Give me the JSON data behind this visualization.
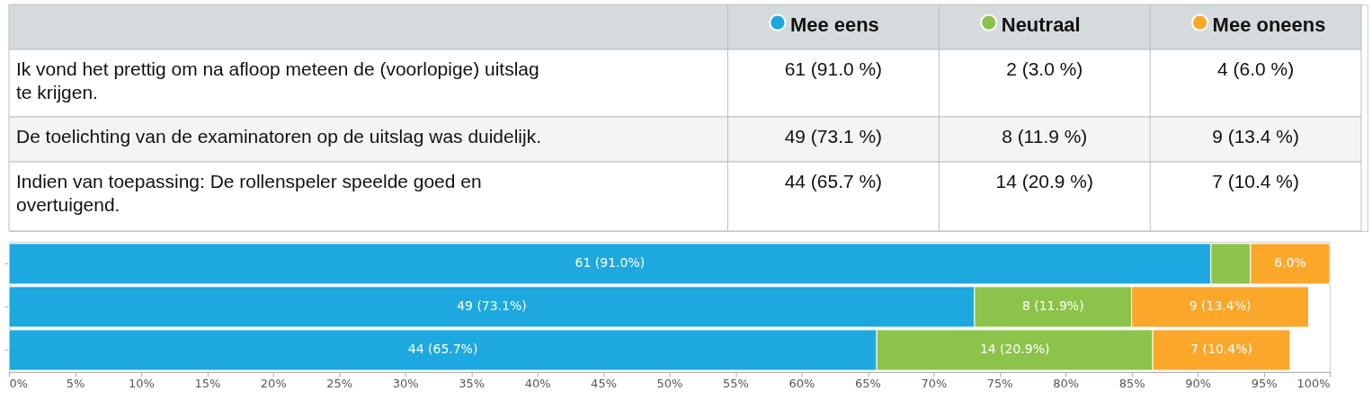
{
  "chart_data": {
    "type": "bar",
    "orientation": "horizontal",
    "stacked": true,
    "categories": [
      null,
      null,
      null
    ],
    "series": [
      {
        "name": "Mee eens",
        "color": "#1ea8e0",
        "values": [
          91.0,
          73.1,
          65.7
        ],
        "value_labels": [
          "61 (91.0%)",
          "49 (73.1%)",
          "44 (65.7%)"
        ]
      },
      {
        "name": "Neutraal",
        "color": "#8cc34b",
        "values": [
          3.0,
          11.9,
          20.9
        ],
        "value_labels": [
          null,
          "8 (11.9%)",
          "14 (20.9%)"
        ]
      },
      {
        "name": "Mee oneens",
        "color": "#fba72a",
        "values": [
          6.0,
          13.4,
          10.4
        ],
        "value_labels": [
          "6.0%",
          "9 (13.4%)",
          "7 (10.4%)"
        ]
      }
    ],
    "annotations": [
      "Ik vond het prettig om na afloop meteen de (voorlopige) uitslag te krijgen.",
      "61 (91.0 %)",
      "2 (3.0 %)",
      "4 (6.0 %)",
      "De toelichting van de examinatoren op de uitslag was duidelijk.",
      "49 (73.1 %)",
      "8 (11.9 %)",
      "9 (13.4 %)",
      "Indien van toepassing: De rollenspeler speelde goed en overtuigend.",
      "44 (65.7 %)",
      "14 (20.9 %)",
      "7 (10.4 %)"
    ],
    "xlim": [
      0,
      100
    ],
    "xticks": [
      {
        "value": 0,
        "label": "0%"
      },
      {
        "value": 5,
        "label": "5%"
      },
      {
        "value": 10,
        "label": "10%"
      },
      {
        "value": 15,
        "label": "15%"
      },
      {
        "value": 20,
        "label": "20%"
      },
      {
        "value": 25,
        "label": "25%"
      },
      {
        "value": 30,
        "label": "30%"
      },
      {
        "value": 35,
        "label": "35%"
      },
      {
        "value": 40,
        "label": "40%"
      },
      {
        "value": 45,
        "label": "45%"
      },
      {
        "value": 50,
        "label": "50%"
      },
      {
        "value": 55,
        "label": "55%"
      },
      {
        "value": 60,
        "label": "60%"
      },
      {
        "value": 65,
        "label": "65%"
      },
      {
        "value": 70,
        "label": "70%"
      },
      {
        "value": 75,
        "label": "75%"
      },
      {
        "value": 80,
        "label": "80%"
      },
      {
        "value": 85,
        "label": "85%"
      },
      {
        "value": 90,
        "label": "90%"
      },
      {
        "value": 95,
        "label": "95%"
      },
      {
        "value": 100,
        "label": "100%"
      }
    ],
    "tick_labels": "x",
    "grid": false,
    "legend": "top"
  }
}
